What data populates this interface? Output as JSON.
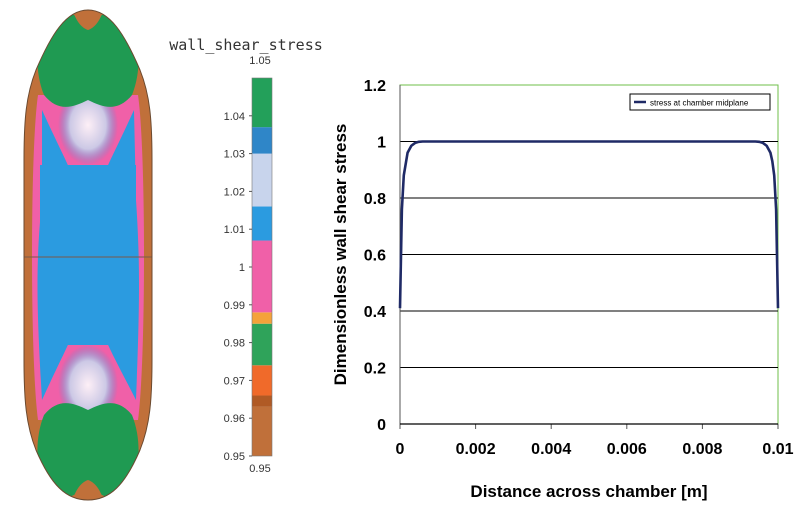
{
  "contour": {
    "title": "wall_shear_stress",
    "colorbar_top_label": "1.05",
    "colorbar_bottom_label": "0.95",
    "ticks": [
      "1.04",
      "1.03",
      "1.02",
      "1.01",
      "1",
      "0.99",
      "0.98",
      "0.97",
      "0.96",
      "0.95"
    ],
    "ticks_values": [
      1.04,
      1.03,
      1.02,
      1.01,
      1.0,
      0.99,
      0.98,
      0.97,
      0.96,
      0.95
    ],
    "range": [
      0.95,
      1.05
    ],
    "bands": [
      {
        "from": 0.95,
        "to": 0.963,
        "color": "#c0703a"
      },
      {
        "from": 0.963,
        "to": 0.966,
        "color": "#b05a25"
      },
      {
        "from": 0.966,
        "to": 0.974,
        "color": "#f06a2a"
      },
      {
        "from": 0.974,
        "to": 0.985,
        "color": "#2fa35a"
      },
      {
        "from": 0.985,
        "to": 0.988,
        "color": "#f4a23a"
      },
      {
        "from": 0.988,
        "to": 1.007,
        "color": "#f060a8"
      },
      {
        "from": 1.007,
        "to": 1.016,
        "color": "#2b9be0"
      },
      {
        "from": 1.016,
        "to": 1.03,
        "color": "#c8d4ec"
      },
      {
        "from": 1.03,
        "to": 1.037,
        "color": "#2f86c8"
      },
      {
        "from": 1.037,
        "to": 1.05,
        "color": "#23a05a"
      }
    ],
    "colors": {
      "outer": "#c0703a",
      "cap": "#1f9a52",
      "center": "#2b9be0",
      "halo": "#c8d4ec",
      "edge": "#f060a8"
    }
  },
  "chart_data": {
    "type": "line",
    "title": "",
    "xlabel": "Distance across chamber [m]",
    "ylabel": "Dimensionless wall shear stress",
    "xlim": [
      0,
      0.01
    ],
    "ylim": [
      0,
      1.2
    ],
    "xticks": [
      0,
      0.002,
      0.004,
      0.006,
      0.008,
      0.01
    ],
    "xtick_labels": [
      "0",
      "0.002",
      "0.004",
      "0.006",
      "0.008",
      "0.01"
    ],
    "yticks": [
      0,
      0.2,
      0.4,
      0.6,
      0.8,
      1,
      1.2
    ],
    "ytick_labels": [
      "0",
      "0.2",
      "0.4",
      "0.6",
      "0.8",
      "1",
      "1.2"
    ],
    "grid": "horizontal",
    "legend": "top-right",
    "series": [
      {
        "name": "stress at chamber midplane",
        "color": "#1f2a66",
        "x": [
          0,
          5e-05,
          0.0001,
          0.0002,
          0.0003,
          0.0004,
          0.0005,
          0.0006,
          0.0008,
          0.001,
          0.002,
          0.005,
          0.008,
          0.009,
          0.0092,
          0.0094,
          0.0095,
          0.0096,
          0.0097,
          0.0098,
          0.00985,
          0.0099,
          0.00995,
          0.01
        ],
        "y": [
          0.41,
          0.76,
          0.88,
          0.96,
          0.985,
          0.995,
          0.999,
          1.0,
          1.0,
          1.0,
          1.0,
          1.0,
          1.0,
          1.0,
          1.0,
          1.0,
          0.999,
          0.995,
          0.985,
          0.96,
          0.93,
          0.88,
          0.76,
          0.41
        ]
      }
    ]
  }
}
